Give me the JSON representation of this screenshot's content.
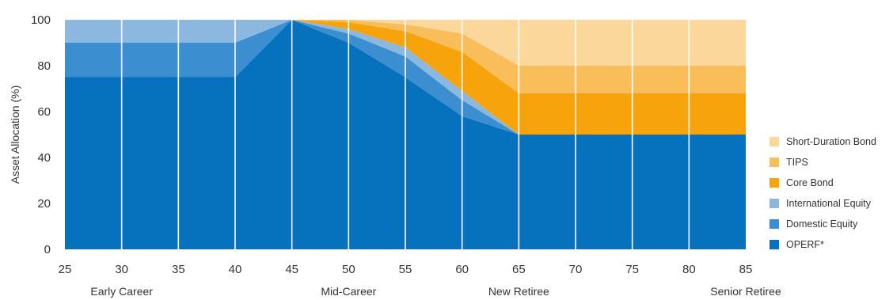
{
  "chart_data": {
    "type": "area",
    "stacked": true,
    "ylabel": "Asset Allocation (%)",
    "xlabel": "",
    "ylim": [
      0,
      100
    ],
    "xlim": [
      25,
      85
    ],
    "yticks": [
      0,
      20,
      40,
      60,
      80,
      100
    ],
    "x": [
      25,
      30,
      35,
      40,
      45,
      50,
      55,
      60,
      65,
      70,
      75,
      80,
      85
    ],
    "grid": "vertical",
    "legend_position": "right",
    "phases": [
      {
        "label": "Early Career",
        "x": 30
      },
      {
        "label": "Mid-Career",
        "x": 50
      },
      {
        "label": "New Retiree",
        "x": 65
      },
      {
        "label": "Senior Retiree",
        "x": 85
      }
    ],
    "series": [
      {
        "name": "OPERF*",
        "color": "#0672bd",
        "values": [
          75,
          75,
          75,
          75,
          100,
          90,
          75,
          58,
          50,
          50,
          50,
          50,
          50
        ]
      },
      {
        "name": "Domestic Equity",
        "color": "#3b8fd1",
        "values": [
          15,
          15,
          15,
          15,
          0,
          4,
          9,
          7,
          0,
          0,
          0,
          0,
          0
        ]
      },
      {
        "name": "International Equity",
        "color": "#8cb8e0",
        "values": [
          10,
          10,
          10,
          10,
          0,
          2,
          4,
          4,
          0,
          0,
          0,
          0,
          0
        ]
      },
      {
        "name": "Core Bond",
        "color": "#f7a30c",
        "values": [
          0,
          0,
          0,
          0,
          0,
          3,
          7,
          17,
          18,
          18,
          18,
          18,
          18
        ]
      },
      {
        "name": "TIPS",
        "color": "#f9be5a",
        "values": [
          0,
          0,
          0,
          0,
          0,
          1,
          3,
          8,
          12,
          12,
          12,
          12,
          12
        ]
      },
      {
        "name": "Short-Duration Bond",
        "color": "#fbd79b",
        "values": [
          0,
          0,
          0,
          0,
          0,
          0,
          2,
          6,
          20,
          20,
          20,
          20,
          20
        ]
      }
    ]
  }
}
